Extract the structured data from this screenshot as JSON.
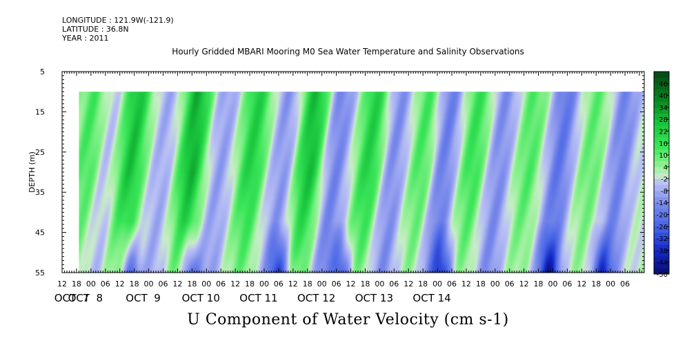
{
  "header": {
    "longitude": "LONGITUDE : 121.9W(-121.9)",
    "latitude": "LATITUDE : 36.8N",
    "year": "YEAR : 2011"
  },
  "chart_data": {
    "type": "heatmap",
    "title": "Hourly Gridded MBARI Mooring M0 Sea Water Temperature and Salinity Observations",
    "xlabel": "U Component of Water Velocity (cm s-1)",
    "ylabel": "DEPTH (m)",
    "y_ticks": [
      5,
      15,
      25,
      35,
      45,
      55
    ],
    "ylim": [
      5,
      55
    ],
    "y_inverted": true,
    "x_hour_ticks": [
      "12",
      "18",
      "00",
      "06",
      "12",
      "18",
      "00",
      "06",
      "12",
      "18",
      "00",
      "06",
      "12",
      "18",
      "00",
      "06",
      "12",
      "18",
      "00",
      "06",
      "12",
      "18",
      "00",
      "06",
      "12",
      "18",
      "00",
      "06",
      "12",
      "18",
      "00",
      "06",
      "12",
      "18",
      "00",
      "06",
      "12",
      "18",
      "00",
      "06"
    ],
    "x_hour_tick_hours": [
      12,
      18,
      24,
      30,
      36,
      42,
      48,
      54,
      60,
      66,
      72,
      78,
      84,
      90,
      96,
      102,
      108,
      114,
      120,
      126,
      132,
      138,
      144,
      150,
      156,
      162,
      168,
      174,
      180,
      186,
      192,
      198,
      204,
      210,
      216,
      222,
      228,
      234,
      240,
      246
    ],
    "x_day_labels": [
      "OCT  7",
      "OCT  8",
      "OCT  9",
      "OCT 10",
      "OCT 11",
      "OCT 12",
      "OCT 13",
      "OCT 14"
    ],
    "x_day_label_hours": [
      0,
      24,
      48,
      72,
      96,
      120,
      144,
      168
    ],
    "xlim_hours": [
      12,
      254
    ],
    "data_start_hour": 19,
    "data_depth_range": [
      10,
      55
    ],
    "colorbar_levels": [
      46,
      40,
      34,
      28,
      22,
      16,
      10,
      4,
      -2,
      -8,
      -14,
      -20,
      -26,
      -32,
      -38,
      -44,
      -50
    ],
    "colorbar_range": [
      -50,
      52
    ],
    "band_hours": [
      23,
      30,
      41,
      54,
      66,
      78,
      91,
      104,
      115,
      126,
      140,
      150,
      162,
      171,
      183,
      194,
      206,
      219,
      232,
      244
    ],
    "band_amplitudes": [
      14,
      -6,
      26,
      -8,
      30,
      -10,
      22,
      -12,
      28,
      -16,
      22,
      -14,
      14,
      -18,
      16,
      -14,
      12,
      -20,
      10,
      -16
    ],
    "band_tilt_hours_per_m": 0.18,
    "deep_hours_negative": [
      40,
      65,
      102,
      128,
      170,
      214,
      236
    ],
    "colors": {
      "deep_green": "#0a5e14",
      "green": "#1fd04a",
      "light_green": "#9af0a0",
      "light_blue": "#b8c0f6",
      "blue": "#6f80ee",
      "deep_blue": "#1020a0"
    }
  }
}
